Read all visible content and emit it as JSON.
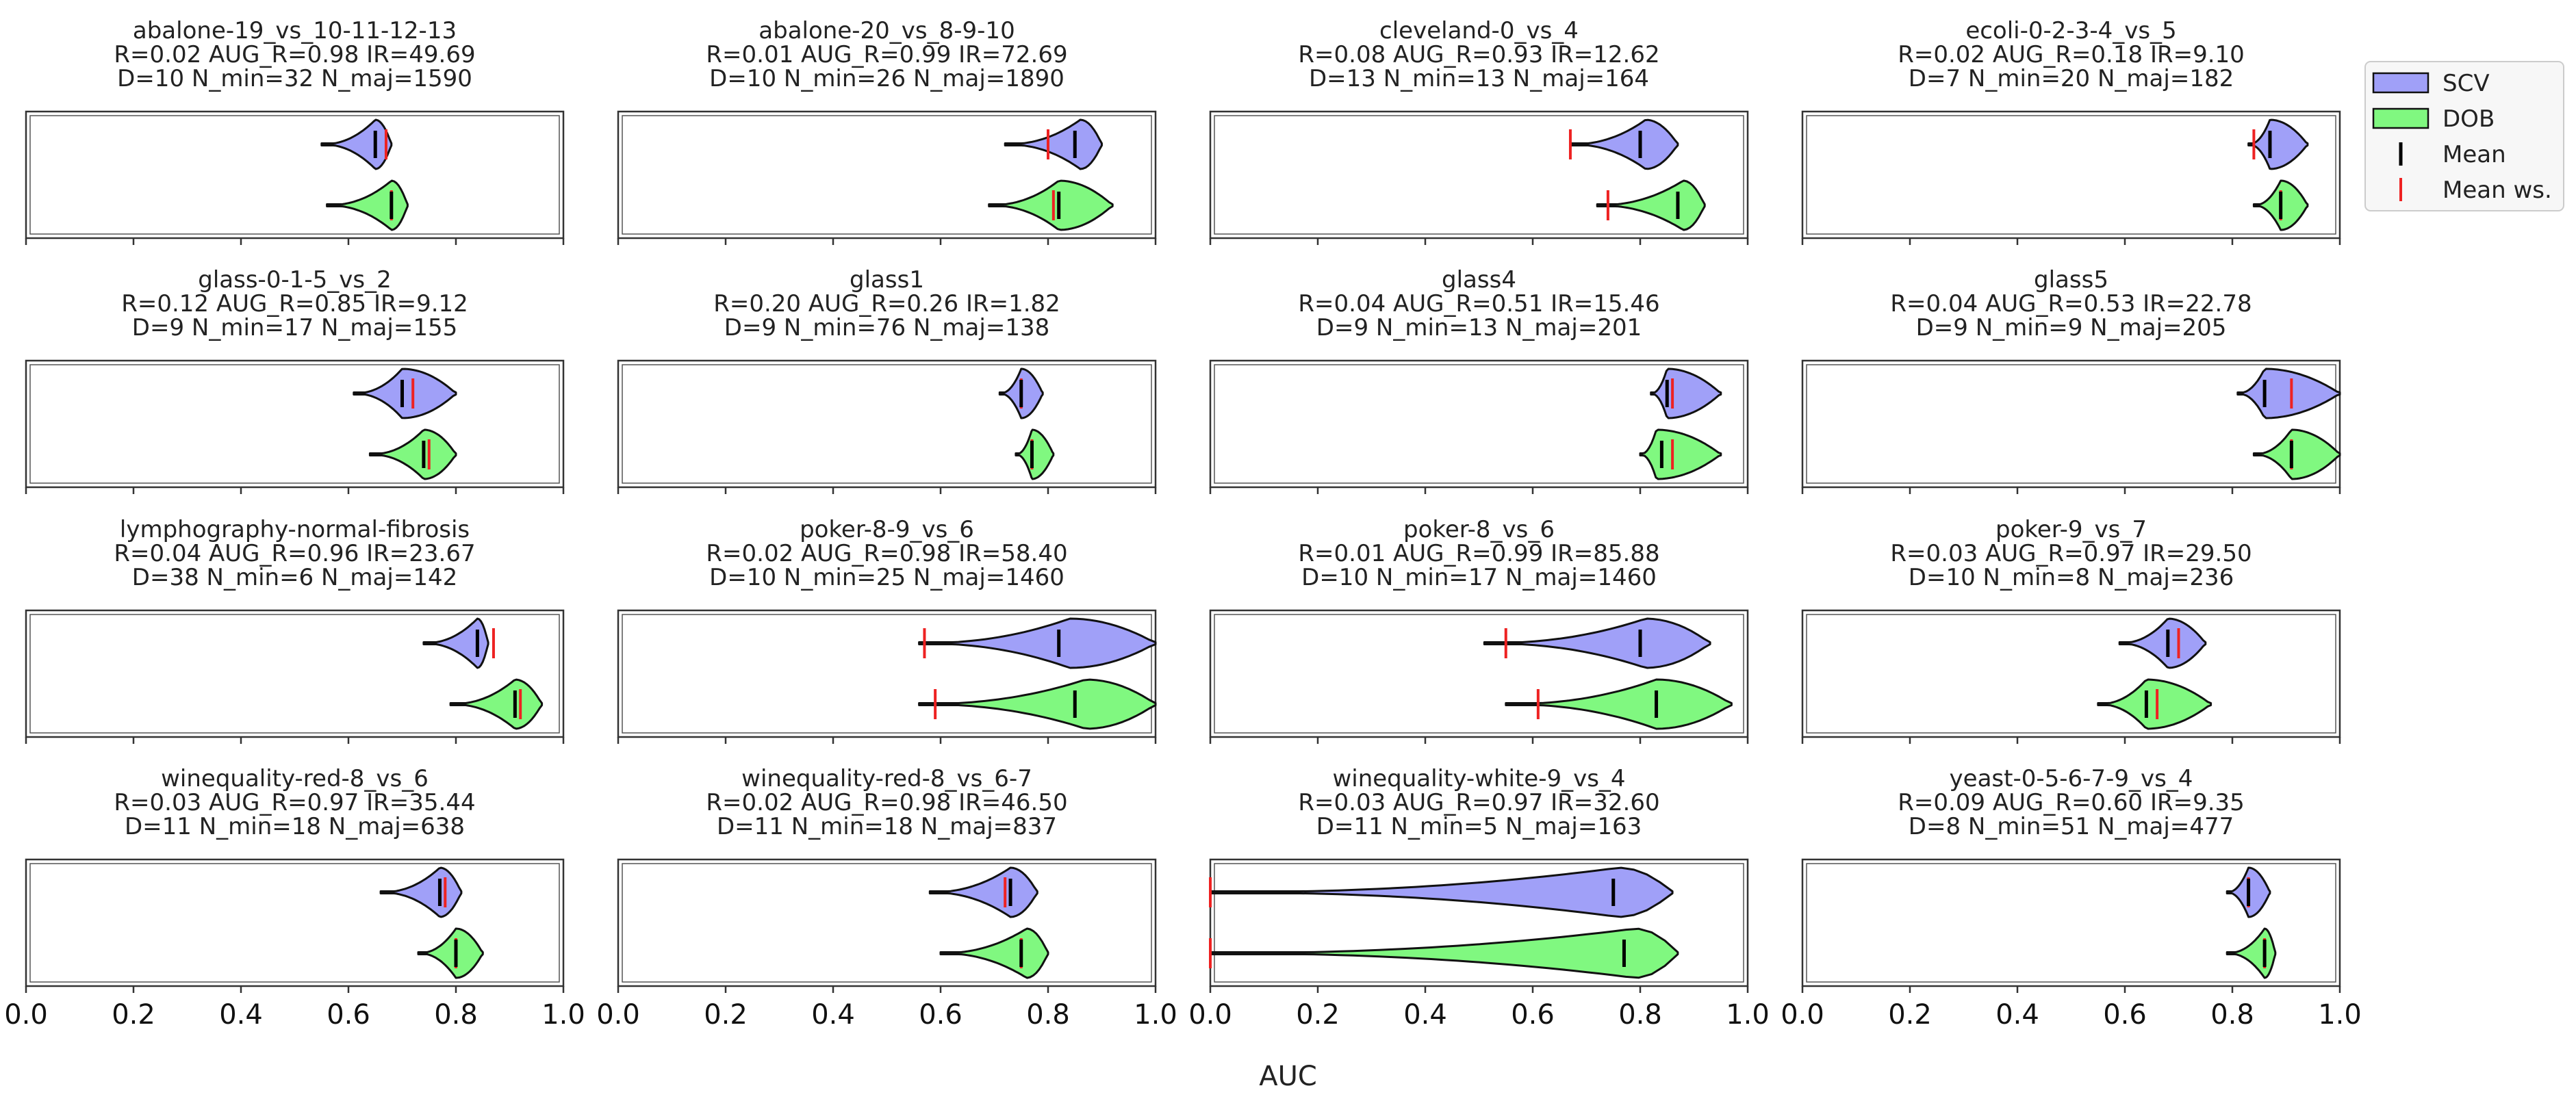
{
  "chart_data": {
    "type": "violin",
    "xlabel": "AUC",
    "xlim": [
      0.0,
      1.0
    ],
    "xticks": [
      0.0,
      0.2,
      0.4,
      0.6,
      0.8,
      1.0
    ],
    "xtick_labels": [
      "0.0",
      "0.2",
      "0.4",
      "0.6",
      "0.8",
      "1.0"
    ],
    "legend": {
      "position": "top-right",
      "entries": [
        {
          "label": "SCV",
          "kind": "patch",
          "color": "#a0a0f8"
        },
        {
          "label": "DOB",
          "kind": "patch",
          "color": "#80f880"
        },
        {
          "label": "Mean",
          "kind": "line",
          "color": "#000000"
        },
        {
          "label": "Mean ws.",
          "kind": "line",
          "color": "#ee2222"
        }
      ]
    },
    "series_colors": {
      "SCV": "#a0a0f8",
      "DOB": "#80f880",
      "mean": "#000000",
      "mean_ws": "#ee2222"
    },
    "panels": [
      {
        "title": "abalone-19_vs_10-11-12-13",
        "line2": "R=0.02   AUG_R=0.98   IR=49.69",
        "line3": "D=10   N_min=32   N_maj=1590",
        "SCV": {
          "min": 0.55,
          "max": 0.68,
          "mode": 0.65,
          "mean": 0.65,
          "mean_ws": 0.67
        },
        "DOB": {
          "min": 0.56,
          "max": 0.71,
          "mode": 0.68,
          "mean": 0.68,
          "mean_ws": 0.68
        }
      },
      {
        "title": "abalone-20_vs_8-9-10",
        "line2": "R=0.01   AUG_R=0.99   IR=72.69",
        "line3": "D=10   N_min=26   N_maj=1890",
        "SCV": {
          "min": 0.72,
          "max": 0.9,
          "mode": 0.86,
          "mean": 0.85,
          "mean_ws": 0.8
        },
        "DOB": {
          "min": 0.69,
          "max": 0.92,
          "mode": 0.82,
          "mean": 0.82,
          "mean_ws": 0.81
        }
      },
      {
        "title": "cleveland-0_vs_4",
        "line2": "R=0.08   AUG_R=0.93   IR=12.62",
        "line3": "D=13   N_min=13   N_maj=164",
        "SCV": {
          "min": 0.67,
          "max": 0.87,
          "mode": 0.81,
          "mean": 0.8,
          "mean_ws": 0.67
        },
        "DOB": {
          "min": 0.72,
          "max": 0.92,
          "mode": 0.88,
          "mean": 0.87,
          "mean_ws": 0.74
        }
      },
      {
        "title": "ecoli-0-2-3-4_vs_5",
        "line2": "R=0.02   AUG_R=0.18   IR=9.10",
        "line3": "D=7   N_min=20   N_maj=182",
        "SCV": {
          "min": 0.83,
          "max": 0.94,
          "mode": 0.87,
          "mean": 0.87,
          "mean_ws": 0.84
        },
        "DOB": {
          "min": 0.84,
          "max": 0.94,
          "mode": 0.89,
          "mean": 0.89,
          "mean_ws": 0.89
        }
      },
      {
        "title": "glass-0-1-5_vs_2",
        "line2": "R=0.12   AUG_R=0.85   IR=9.12",
        "line3": "D=9   N_min=17   N_maj=155",
        "SCV": {
          "min": 0.61,
          "max": 0.8,
          "mode": 0.7,
          "mean": 0.7,
          "mean_ws": 0.72
        },
        "DOB": {
          "min": 0.64,
          "max": 0.8,
          "mode": 0.74,
          "mean": 0.74,
          "mean_ws": 0.75
        }
      },
      {
        "title": "glass1",
        "line2": "R=0.20   AUG_R=0.26   IR=1.82",
        "line3": "D=9   N_min=76   N_maj=138",
        "SCV": {
          "min": 0.71,
          "max": 0.79,
          "mode": 0.75,
          "mean": 0.75,
          "mean_ws": 0.75
        },
        "DOB": {
          "min": 0.74,
          "max": 0.81,
          "mode": 0.77,
          "mean": 0.77,
          "mean_ws": 0.77
        }
      },
      {
        "title": "glass4",
        "line2": "R=0.04   AUG_R=0.51   IR=15.46",
        "line3": "D=9   N_min=13   N_maj=201",
        "SCV": {
          "min": 0.82,
          "max": 0.95,
          "mode": 0.85,
          "mean": 0.85,
          "mean_ws": 0.86
        },
        "DOB": {
          "min": 0.8,
          "max": 0.95,
          "mode": 0.83,
          "mean": 0.84,
          "mean_ws": 0.86
        }
      },
      {
        "title": "glass5",
        "line2": "R=0.04   AUG_R=0.53   IR=22.78",
        "line3": "D=9   N_min=9   N_maj=205",
        "SCV": {
          "min": 0.81,
          "max": 1.0,
          "mode": 0.86,
          "mean": 0.86,
          "mean_ws": 0.91
        },
        "DOB": {
          "min": 0.84,
          "max": 1.0,
          "mode": 0.91,
          "mean": 0.91,
          "mean_ws": 0.91
        }
      },
      {
        "title": "lymphography-normal-fibrosis",
        "line2": "R=0.04   AUG_R=0.96   IR=23.67",
        "line3": "D=38   N_min=6   N_maj=142",
        "SCV": {
          "min": 0.74,
          "max": 0.86,
          "mode": 0.84,
          "mean": 0.84,
          "mean_ws": 0.87
        },
        "DOB": {
          "min": 0.79,
          "max": 0.96,
          "mode": 0.91,
          "mean": 0.91,
          "mean_ws": 0.92
        }
      },
      {
        "title": "poker-8-9_vs_6",
        "line2": "R=0.02   AUG_R=0.98   IR=58.40",
        "line3": "D=10   N_min=25   N_maj=1460",
        "SCV": {
          "min": 0.56,
          "max": 1.0,
          "mode": 0.84,
          "mean": 0.82,
          "mean_ws": 0.57
        },
        "DOB": {
          "min": 0.56,
          "max": 1.0,
          "mode": 0.87,
          "mean": 0.85,
          "mean_ws": 0.59
        }
      },
      {
        "title": "poker-8_vs_6",
        "line2": "R=0.01   AUG_R=0.99   IR=85.88",
        "line3": "D=10   N_min=17   N_maj=1460",
        "SCV": {
          "min": 0.51,
          "max": 0.93,
          "mode": 0.81,
          "mean": 0.8,
          "mean_ws": 0.55
        },
        "DOB": {
          "min": 0.55,
          "max": 0.97,
          "mode": 0.83,
          "mean": 0.83,
          "mean_ws": 0.61
        }
      },
      {
        "title": "poker-9_vs_7",
        "line2": "R=0.03   AUG_R=0.97   IR=29.50",
        "line3": "D=10   N_min=8   N_maj=236",
        "SCV": {
          "min": 0.59,
          "max": 0.75,
          "mode": 0.68,
          "mean": 0.68,
          "mean_ws": 0.7
        },
        "DOB": {
          "min": 0.55,
          "max": 0.76,
          "mode": 0.64,
          "mean": 0.64,
          "mean_ws": 0.66
        }
      },
      {
        "title": "winequality-red-8_vs_6",
        "line2": "R=0.03   AUG_R=0.97   IR=35.44",
        "line3": "D=11   N_min=18   N_maj=638",
        "SCV": {
          "min": 0.66,
          "max": 0.81,
          "mode": 0.77,
          "mean": 0.77,
          "mean_ws": 0.78
        },
        "DOB": {
          "min": 0.73,
          "max": 0.85,
          "mode": 0.8,
          "mean": 0.8,
          "mean_ws": 0.8
        }
      },
      {
        "title": "winequality-red-8_vs_6-7",
        "line2": "R=0.02   AUG_R=0.98   IR=46.50",
        "line3": "D=11   N_min=18   N_maj=837",
        "SCV": {
          "min": 0.58,
          "max": 0.78,
          "mode": 0.73,
          "mean": 0.73,
          "mean_ws": 0.72
        },
        "DOB": {
          "min": 0.6,
          "max": 0.8,
          "mode": 0.76,
          "mean": 0.75,
          "mean_ws": 0.75
        }
      },
      {
        "title": "winequality-white-9_vs_4",
        "line2": "R=0.03   AUG_R=0.97   IR=32.60",
        "line3": "D=11   N_min=5   N_maj=163",
        "SCV": {
          "min": 0.0,
          "max": 0.86,
          "mode": 0.76,
          "mean": 0.75,
          "mean_ws": 0.0
        },
        "DOB": {
          "min": 0.0,
          "max": 0.87,
          "mode": 0.79,
          "mean": 0.77,
          "mean_ws": 0.0
        }
      },
      {
        "title": "yeast-0-5-6-7-9_vs_4",
        "line2": "R=0.09   AUG_R=0.60   IR=9.35",
        "line3": "D=8   N_min=51   N_maj=477",
        "SCV": {
          "min": 0.79,
          "max": 0.87,
          "mode": 0.83,
          "mean": 0.83,
          "mean_ws": 0.83
        },
        "DOB": {
          "min": 0.79,
          "max": 0.88,
          "mode": 0.86,
          "mean": 0.86,
          "mean_ws": 0.86
        }
      }
    ]
  }
}
